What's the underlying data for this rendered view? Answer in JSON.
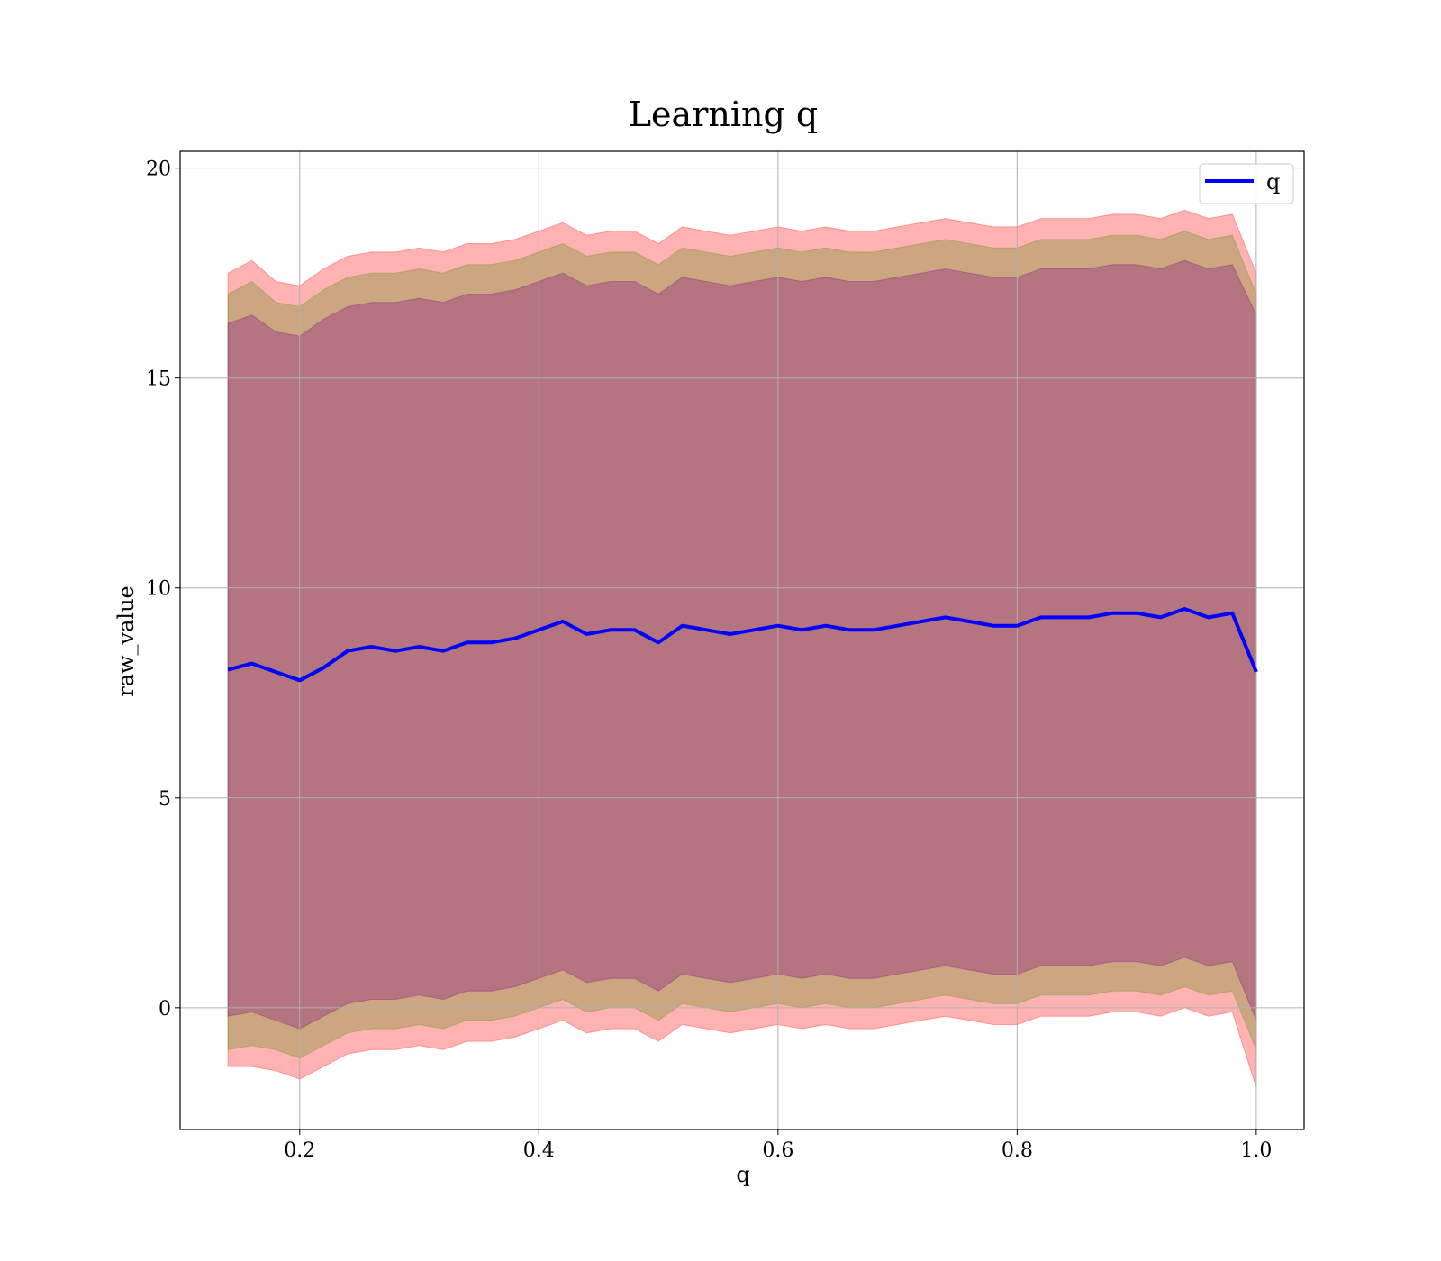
{
  "chart_data": {
    "type": "area",
    "title": "Learning q",
    "xlabel": "q",
    "ylabel": "raw_value",
    "xlim": [
      0.1,
      1.04
    ],
    "ylim": [
      -2.9,
      20.4
    ],
    "xticks": [
      0.2,
      0.4,
      0.6,
      0.8,
      1.0
    ],
    "xtick_labels": [
      "0.2",
      "0.4",
      "0.6",
      "0.8",
      "1.0"
    ],
    "yticks": [
      0,
      5,
      10,
      15,
      20
    ],
    "ytick_labels": [
      "0",
      "5",
      "10",
      "15",
      "20"
    ],
    "grid": true,
    "legend": {
      "position": "top-right",
      "entries": [
        "q"
      ]
    },
    "x": [
      0.14,
      0.16,
      0.18,
      0.2,
      0.22,
      0.24,
      0.26,
      0.28,
      0.3,
      0.32,
      0.34,
      0.36,
      0.38,
      0.4,
      0.42,
      0.44,
      0.46,
      0.48,
      0.5,
      0.52,
      0.54,
      0.56,
      0.58,
      0.6,
      0.62,
      0.64,
      0.66,
      0.68,
      0.7,
      0.72,
      0.74,
      0.76,
      0.78,
      0.8,
      0.82,
      0.84,
      0.86,
      0.88,
      0.9,
      0.92,
      0.94,
      0.96,
      0.98,
      1.0
    ],
    "series": [
      {
        "name": "q",
        "color": "#0000ff",
        "values": [
          8.05,
          8.2,
          8.0,
          7.8,
          8.1,
          8.5,
          8.6,
          8.5,
          8.6,
          8.5,
          8.7,
          8.7,
          8.8,
          9.0,
          9.2,
          8.9,
          9.0,
          9.0,
          8.7,
          9.1,
          9.0,
          8.9,
          9.0,
          9.1,
          9.0,
          9.1,
          9.0,
          9.0,
          9.1,
          9.2,
          9.3,
          9.2,
          9.1,
          9.1,
          9.3,
          9.3,
          9.3,
          9.4,
          9.4,
          9.3,
          9.5,
          9.3,
          9.4,
          8.0
        ]
      }
    ],
    "bands": [
      {
        "role": "outer",
        "color": "#ff0000",
        "opacity": 0.3,
        "upper": [
          17.5,
          17.8,
          17.3,
          17.2,
          17.6,
          17.9,
          18.0,
          18.0,
          18.1,
          18.0,
          18.2,
          18.2,
          18.3,
          18.5,
          18.7,
          18.4,
          18.5,
          18.5,
          18.2,
          18.6,
          18.5,
          18.4,
          18.5,
          18.6,
          18.5,
          18.6,
          18.5,
          18.5,
          18.6,
          18.7,
          18.8,
          18.7,
          18.6,
          18.6,
          18.8,
          18.8,
          18.8,
          18.9,
          18.9,
          18.8,
          19.0,
          18.8,
          18.9,
          17.5
        ],
        "lower": [
          -1.4,
          -1.4,
          -1.5,
          -1.7,
          -1.4,
          -1.1,
          -1.0,
          -1.0,
          -0.9,
          -1.0,
          -0.8,
          -0.8,
          -0.7,
          -0.5,
          -0.3,
          -0.6,
          -0.5,
          -0.5,
          -0.8,
          -0.4,
          -0.5,
          -0.6,
          -0.5,
          -0.4,
          -0.5,
          -0.4,
          -0.5,
          -0.5,
          -0.4,
          -0.3,
          -0.2,
          -0.3,
          -0.4,
          -0.4,
          -0.2,
          -0.2,
          -0.2,
          -0.1,
          -0.1,
          -0.2,
          0.0,
          -0.2,
          -0.1,
          -1.9
        ]
      },
      {
        "role": "inner",
        "color": "#6b8e23",
        "opacity": 0.35,
        "upper": [
          17.0,
          17.3,
          16.8,
          16.7,
          17.1,
          17.4,
          17.5,
          17.5,
          17.6,
          17.5,
          17.7,
          17.7,
          17.8,
          18.0,
          18.2,
          17.9,
          18.0,
          18.0,
          17.7,
          18.1,
          18.0,
          17.9,
          18.0,
          18.1,
          18.0,
          18.1,
          18.0,
          18.0,
          18.1,
          18.2,
          18.3,
          18.2,
          18.1,
          18.1,
          18.3,
          18.3,
          18.3,
          18.4,
          18.4,
          18.3,
          18.5,
          18.3,
          18.4,
          17.0
        ],
        "lower": [
          -1.0,
          -0.9,
          -1.0,
          -1.2,
          -0.9,
          -0.6,
          -0.5,
          -0.5,
          -0.4,
          -0.5,
          -0.3,
          -0.3,
          -0.2,
          0.0,
          0.2,
          -0.1,
          0.0,
          0.0,
          -0.3,
          0.1,
          0.0,
          -0.1,
          0.0,
          0.1,
          0.0,
          0.1,
          0.0,
          0.0,
          0.1,
          0.2,
          0.3,
          0.2,
          0.1,
          0.1,
          0.3,
          0.3,
          0.3,
          0.4,
          0.4,
          0.3,
          0.5,
          0.3,
          0.4,
          -1.0
        ]
      },
      {
        "role": "core",
        "color": "#800080",
        "opacity": 0.3,
        "upper": [
          16.3,
          16.5,
          16.1,
          16.0,
          16.4,
          16.7,
          16.8,
          16.8,
          16.9,
          16.8,
          17.0,
          17.0,
          17.1,
          17.3,
          17.5,
          17.2,
          17.3,
          17.3,
          17.0,
          17.4,
          17.3,
          17.2,
          17.3,
          17.4,
          17.3,
          17.4,
          17.3,
          17.3,
          17.4,
          17.5,
          17.6,
          17.5,
          17.4,
          17.4,
          17.6,
          17.6,
          17.6,
          17.7,
          17.7,
          17.6,
          17.8,
          17.6,
          17.7,
          16.5
        ],
        "lower": [
          -0.2,
          -0.1,
          -0.3,
          -0.5,
          -0.2,
          0.1,
          0.2,
          0.2,
          0.3,
          0.2,
          0.4,
          0.4,
          0.5,
          0.7,
          0.9,
          0.6,
          0.7,
          0.7,
          0.4,
          0.8,
          0.7,
          0.6,
          0.7,
          0.8,
          0.7,
          0.8,
          0.7,
          0.7,
          0.8,
          0.9,
          1.0,
          0.9,
          0.8,
          0.8,
          1.0,
          1.0,
          1.0,
          1.1,
          1.1,
          1.0,
          1.2,
          1.0,
          1.1,
          -0.3
        ]
      }
    ]
  }
}
